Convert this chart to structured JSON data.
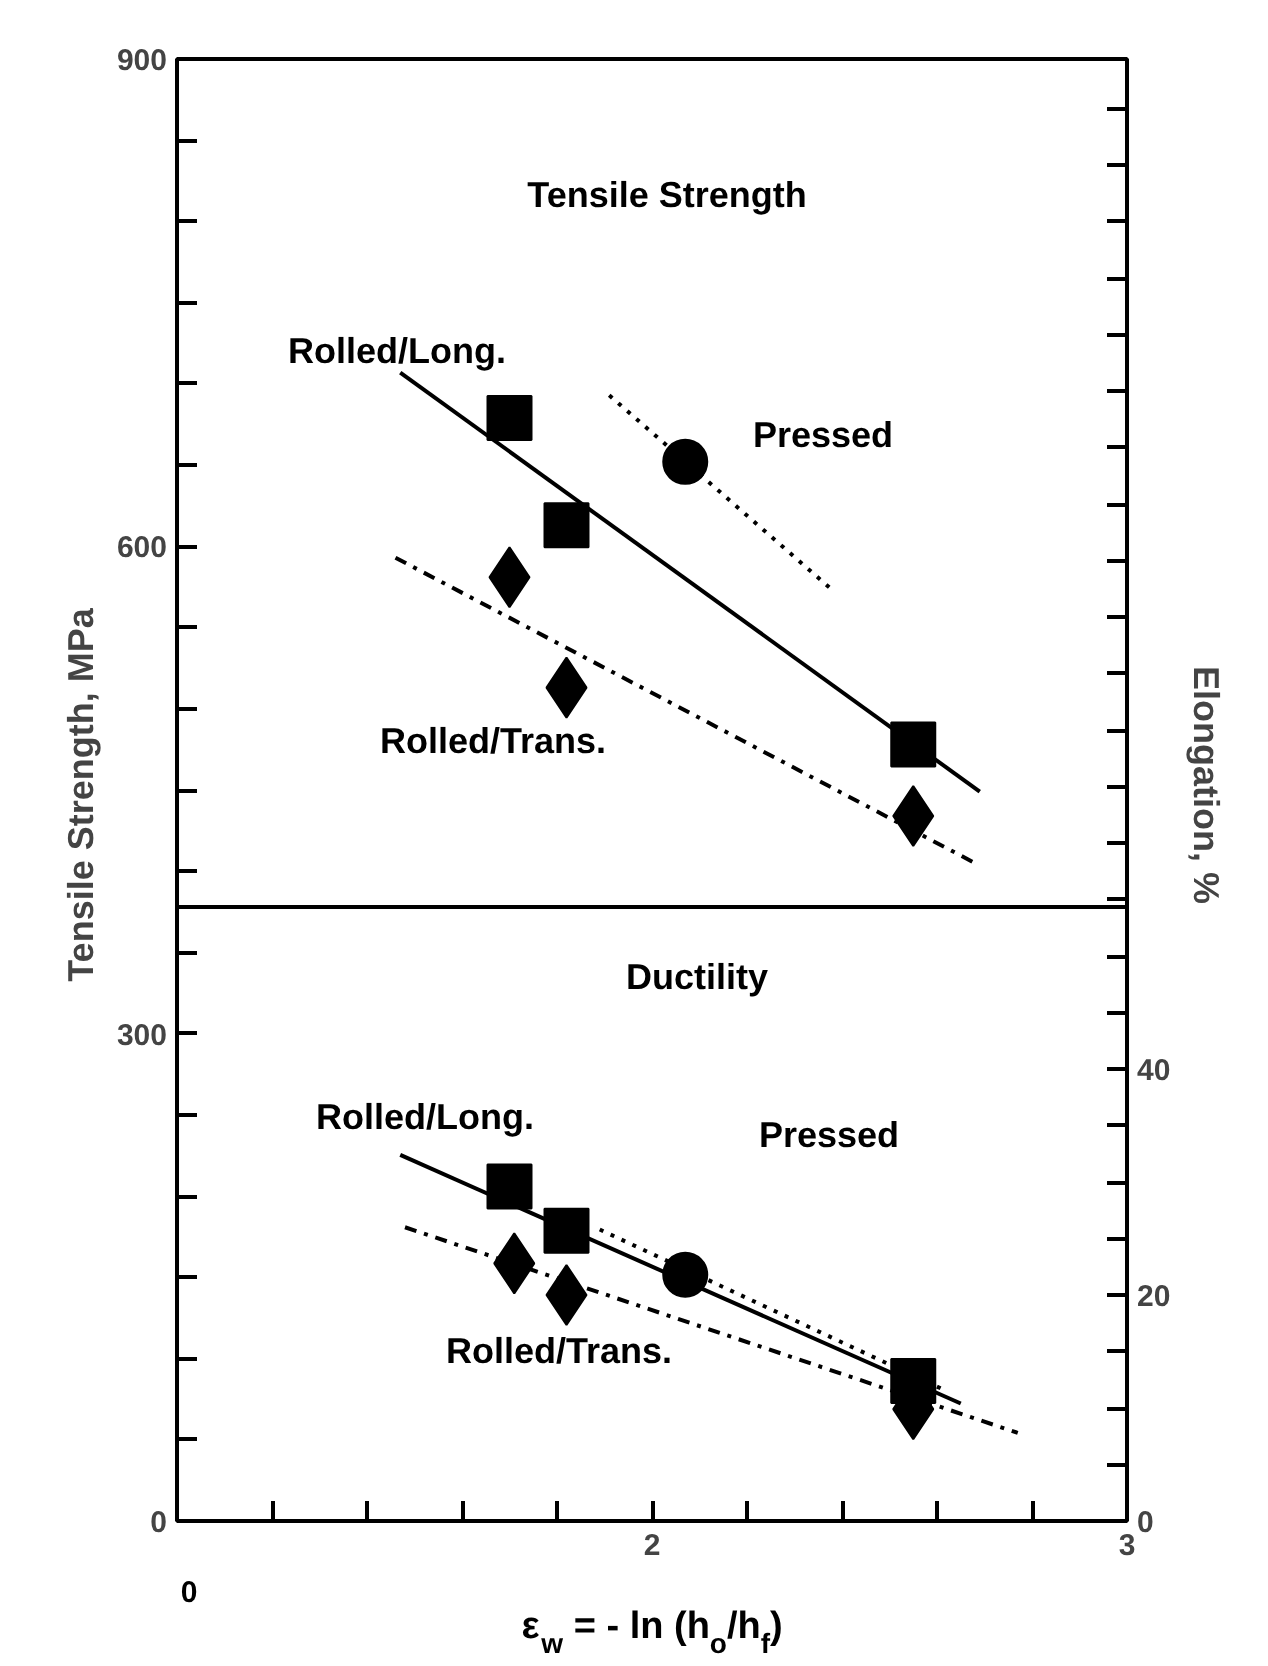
{
  "chart_data": {
    "type": "scatter",
    "xlabel": "ε$_{w}$ = - ln (h$_{o}$/h$_{f}$)",
    "ylabel": "Tensile Strength,  MPa",
    "y2label": "Elongation,  %",
    "xlim": [
      1.0,
      3.0
    ],
    "xticks": [
      {
        "value": 1.2,
        "label": null
      },
      {
        "value": 1.4,
        "label": null
      },
      {
        "value": 1.6,
        "label": null
      },
      {
        "value": 1.8,
        "label": null
      },
      2,
      {
        "value": 2.2,
        "label": null
      },
      {
        "value": 2.4,
        "label": null
      },
      {
        "value": 2.6,
        "label": null
      },
      {
        "value": 2.8,
        "label": null
      },
      3
    ],
    "ylim": [
      0,
      900
    ],
    "yticks": [
      0,
      {
        "value": 50,
        "label": null
      },
      {
        "value": 100,
        "label": null
      },
      {
        "value": 150,
        "label": null
      },
      {
        "value": 200,
        "label": null
      },
      {
        "value": 250,
        "label": null
      },
      300,
      {
        "value": 350,
        "label": null
      },
      {
        "value": 400,
        "label": null
      },
      {
        "value": 450,
        "label": null
      },
      {
        "value": 500,
        "label": null
      },
      {
        "value": 550,
        "label": null
      },
      600,
      {
        "value": 650,
        "label": null
      },
      {
        "value": 700,
        "label": null
      },
      {
        "value": 750,
        "label": null
      },
      {
        "value": 800,
        "label": null
      },
      {
        "value": 850,
        "label": null
      },
      900
    ],
    "y2lim": [
      0,
      129.4
    ],
    "y2ticks": [
      0,
      {
        "value": 5,
        "label": null
      },
      {
        "value": 10,
        "label": null
      },
      {
        "value": 15,
        "label": null
      },
      20,
      {
        "value": 25,
        "label": null
      },
      {
        "value": 30,
        "label": null
      },
      {
        "value": 35,
        "label": null
      },
      40,
      {
        "value": 45,
        "label": null
      },
      {
        "value": 50,
        "label": null
      },
      {
        "value": 55,
        "label": null
      },
      {
        "value": 60,
        "label": null
      },
      {
        "value": 65,
        "label": null
      },
      {
        "value": 70,
        "label": null
      },
      {
        "value": 75,
        "label": null
      },
      {
        "value": 80,
        "label": null
      },
      {
        "value": 85,
        "label": null
      },
      {
        "value": 90,
        "label": null
      },
      {
        "value": 95,
        "label": null
      },
      {
        "value": 100,
        "label": null
      },
      {
        "value": 105,
        "label": null
      },
      {
        "value": 110,
        "label": null
      },
      {
        "value": 115,
        "label": null
      },
      {
        "value": 120,
        "label": null
      },
      {
        "value": 125,
        "label": null
      }
    ],
    "grid": false,
    "series": [
      {
        "marker": "square",
        "color": "#000000",
        "x": [
          1.7,
          1.82,
          2.55
        ],
        "values": [
          679,
          613,
          478
        ]
      },
      {
        "marker": "circle",
        "color": "#000000",
        "x": [
          2.07
        ],
        "values": [
          652
        ]
      },
      {
        "marker": "diamond",
        "color": "#000000",
        "x": [
          1.7,
          1.82,
          2.55
        ],
        "values": [
          581,
          513,
          434
        ]
      },
      {
        "type": "line",
        "line_style": "solid",
        "color": "#000000",
        "x": [
          1.47,
          2.69
        ],
        "values": [
          707,
          449
        ]
      },
      {
        "type": "line",
        "line_style": "dotted",
        "color": "#000000",
        "x": [
          1.91,
          2.38
        ],
        "values": [
          693,
          573
        ]
      },
      {
        "type": "line",
        "line_style": "dashdot",
        "color": "#000000",
        "x": [
          1.46,
          2.68
        ],
        "values": [
          593,
          405
        ]
      },
      {
        "marker": "square",
        "color": "#000000",
        "axis": "y2",
        "x": [
          1.7,
          1.82,
          2.55
        ],
        "values": [
          29.6,
          25.7,
          12.4
        ]
      },
      {
        "marker": "circle",
        "color": "#000000",
        "axis": "y2",
        "x": [
          2.07
        ],
        "values": [
          21.8
        ]
      },
      {
        "marker": "diamond",
        "color": "#000000",
        "axis": "y2",
        "x": [
          1.71,
          1.82,
          2.55
        ],
        "values": [
          22.8,
          20.0,
          9.9
        ]
      },
      {
        "type": "line",
        "line_style": "solid",
        "color": "#000000",
        "axis": "y2",
        "x": [
          1.47,
          2.65
        ],
        "values": [
          32.4,
          10.4
        ]
      },
      {
        "type": "line",
        "line_style": "dotted",
        "color": "#000000",
        "axis": "y2",
        "x": [
          1.89,
          2.62
        ],
        "values": [
          25.8,
          11.5
        ]
      },
      {
        "type": "line",
        "line_style": "dashdot",
        "color": "#000000",
        "axis": "y2",
        "x": [
          1.48,
          2.77
        ],
        "values": [
          26.0,
          7.8
        ]
      }
    ],
    "ref_lines": [
      {
        "axis": "y",
        "value": 378,
        "color": "#000000",
        "line_style": "solid"
      }
    ],
    "annotations": [
      "Tensile Strength",
      "Rolled/Long.",
      "Pressed",
      "Rolled/Trans.",
      "Ductility",
      "Rolled/Long.",
      "Pressed",
      "Rolled/Trans.",
      "0"
    ]
  }
}
